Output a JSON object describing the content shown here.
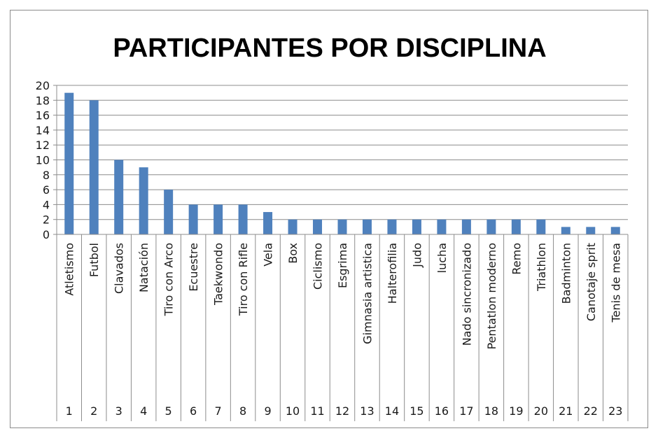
{
  "chart_data": {
    "type": "bar",
    "title": "PARTICIPANTES POR DISCIPLINA",
    "xlabel": "",
    "ylabel": "",
    "ylim": [
      0,
      20
    ],
    "yticks": [
      0,
      2,
      4,
      6,
      8,
      10,
      12,
      14,
      16,
      18,
      20
    ],
    "grid": true,
    "legend": "none",
    "bar_color": "#4f81bd",
    "categories": [
      {
        "number": "1",
        "name": "Atletismo"
      },
      {
        "number": "2",
        "name": "Futbol"
      },
      {
        "number": "3",
        "name": "Clavados"
      },
      {
        "number": "4",
        "name": "Natación"
      },
      {
        "number": "5",
        "name": "Tiro con Arco"
      },
      {
        "number": "6",
        "name": "Ecuestre"
      },
      {
        "number": "7",
        "name": "Taekwondo"
      },
      {
        "number": "8",
        "name": "Tiro con Rifle"
      },
      {
        "number": "9",
        "name": "Vela"
      },
      {
        "number": "10",
        "name": "Box"
      },
      {
        "number": "11",
        "name": "Ciclismo"
      },
      {
        "number": "12",
        "name": "Esgrima"
      },
      {
        "number": "13",
        "name": "Gimnasia artistica"
      },
      {
        "number": "14",
        "name": "Halterofilia"
      },
      {
        "number": "15",
        "name": "Judo"
      },
      {
        "number": "16",
        "name": "lucha"
      },
      {
        "number": "17",
        "name": "Nado sincronizado"
      },
      {
        "number": "18",
        "name": "Pentatlon moderno"
      },
      {
        "number": "19",
        "name": "Remo"
      },
      {
        "number": "20",
        "name": "Triathlon"
      },
      {
        "number": "21",
        "name": "Badminton"
      },
      {
        "number": "22",
        "name": "Canotaje sprit"
      },
      {
        "number": "23",
        "name": "Tenis de mesa"
      }
    ],
    "values": [
      19,
      18,
      10,
      9,
      6,
      4,
      4,
      4,
      3,
      2,
      2,
      2,
      2,
      2,
      2,
      2,
      2,
      2,
      2,
      2,
      1,
      1,
      1
    ]
  }
}
